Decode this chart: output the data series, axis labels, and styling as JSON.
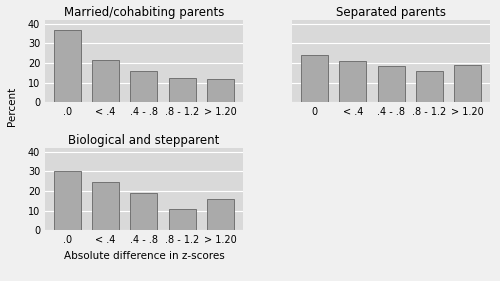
{
  "panels": [
    {
      "title": "Married/cohabiting parents",
      "categories": [
        ".0",
        "< .4",
        ".4 - .8",
        ".8 - 1.2",
        "> 1.20"
      ],
      "values": [
        37,
        21.5,
        16,
        12.5,
        12
      ],
      "show_ylabel": true,
      "show_xlabel": false
    },
    {
      "title": "Separated parents",
      "categories": [
        "0",
        "< .4",
        ".4 - .8",
        ".8 - 1.2",
        "> 1.20"
      ],
      "values": [
        24,
        21,
        18.5,
        16,
        19
      ],
      "show_ylabel": false,
      "show_xlabel": false
    },
    {
      "title": "Biological and stepparent",
      "categories": [
        ".0",
        "< .4",
        ".4 - .8",
        ".8 - 1.2",
        "> 1.20"
      ],
      "values": [
        30,
        24.5,
        19,
        11,
        16
      ],
      "show_ylabel": true,
      "show_xlabel": true
    }
  ],
  "bar_color": "#aaaaaa",
  "bar_edge_color": "#666666",
  "panel_bg": "#d9d9d9",
  "fig_bg": "#f0f0f0",
  "grid_color": "#ffffff",
  "ylabel": "Percent",
  "xlabel": "Absolute difference in z-scores",
  "ylim": [
    0,
    42
  ],
  "yticks": [
    0,
    10,
    20,
    30,
    40
  ],
  "title_fontsize": 8.5,
  "label_fontsize": 7.5,
  "tick_fontsize": 7,
  "bar_width": 0.7
}
